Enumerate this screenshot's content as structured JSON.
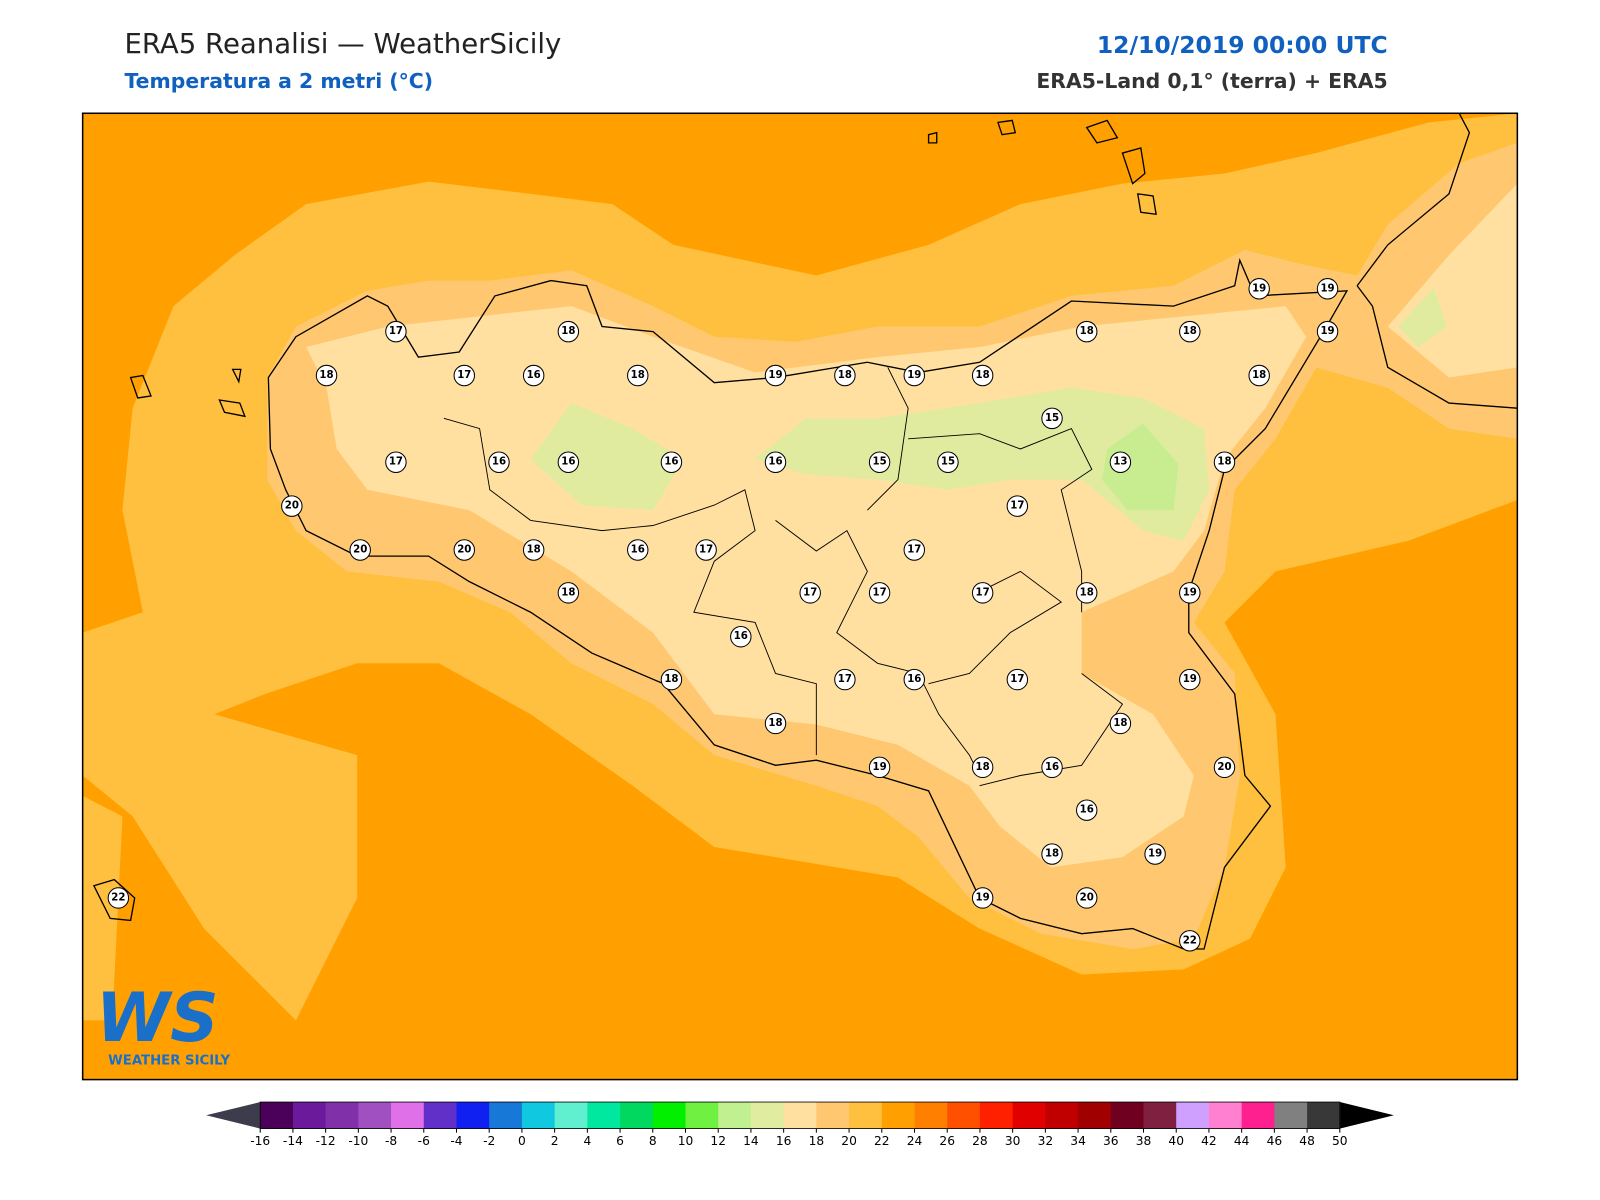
{
  "header": {
    "title": "ERA5 Reanalisi — WeatherSicily",
    "subtitle": "Temperatura a 2 metri (°C)",
    "datetime": "12/10/2019 00:00 UTC",
    "source": "ERA5-Land 0,1° (terra) + ERA5"
  },
  "logo": {
    "mark": "WS",
    "name": "WEATHER SICILY"
  },
  "stations": {
    "values": [
      17,
      18,
      18,
      17,
      16,
      18,
      19,
      18,
      19,
      18,
      18,
      18,
      19,
      19,
      19,
      18,
      15,
      17,
      16,
      16,
      16,
      16,
      15,
      15,
      13,
      18,
      20,
      17,
      20,
      20,
      18,
      16,
      17,
      17,
      18,
      17,
      17,
      17,
      18,
      19,
      16,
      18,
      17,
      16,
      17,
      19,
      18,
      18,
      19,
      18,
      16,
      20,
      16,
      18,
      19,
      19,
      20,
      22,
      22
    ]
  },
  "colorbar": {
    "ticks": [
      -16,
      -14,
      -12,
      -10,
      -8,
      -6,
      -4,
      -2,
      0,
      2,
      4,
      6,
      8,
      10,
      12,
      14,
      16,
      18,
      20,
      22,
      24,
      26,
      28,
      30,
      32,
      34,
      36,
      38,
      40,
      42,
      44,
      46,
      48,
      50
    ],
    "colors": [
      "#4b0059",
      "#6a1a9a",
      "#8030a8",
      "#a050c0",
      "#e070e8",
      "#6030c8",
      "#1020f0",
      "#1878d8",
      "#10c8e0",
      "#60f0d0",
      "#00e8a0",
      "#00d860",
      "#00f000",
      "#70f040",
      "#c0f090",
      "#e0eda0",
      "#ffe0a0",
      "#ffc870",
      "#ffc040",
      "#ffa000",
      "#ff8000",
      "#ff5000",
      "#ff2000",
      "#e00000",
      "#c00000",
      "#a00000",
      "#700020",
      "#802040",
      "#d0a0ff",
      "#ff80d0",
      "#ff2090",
      "#808080",
      "#383838"
    ],
    "under_color": "#3c3c4c",
    "over_color": "#000000"
  }
}
